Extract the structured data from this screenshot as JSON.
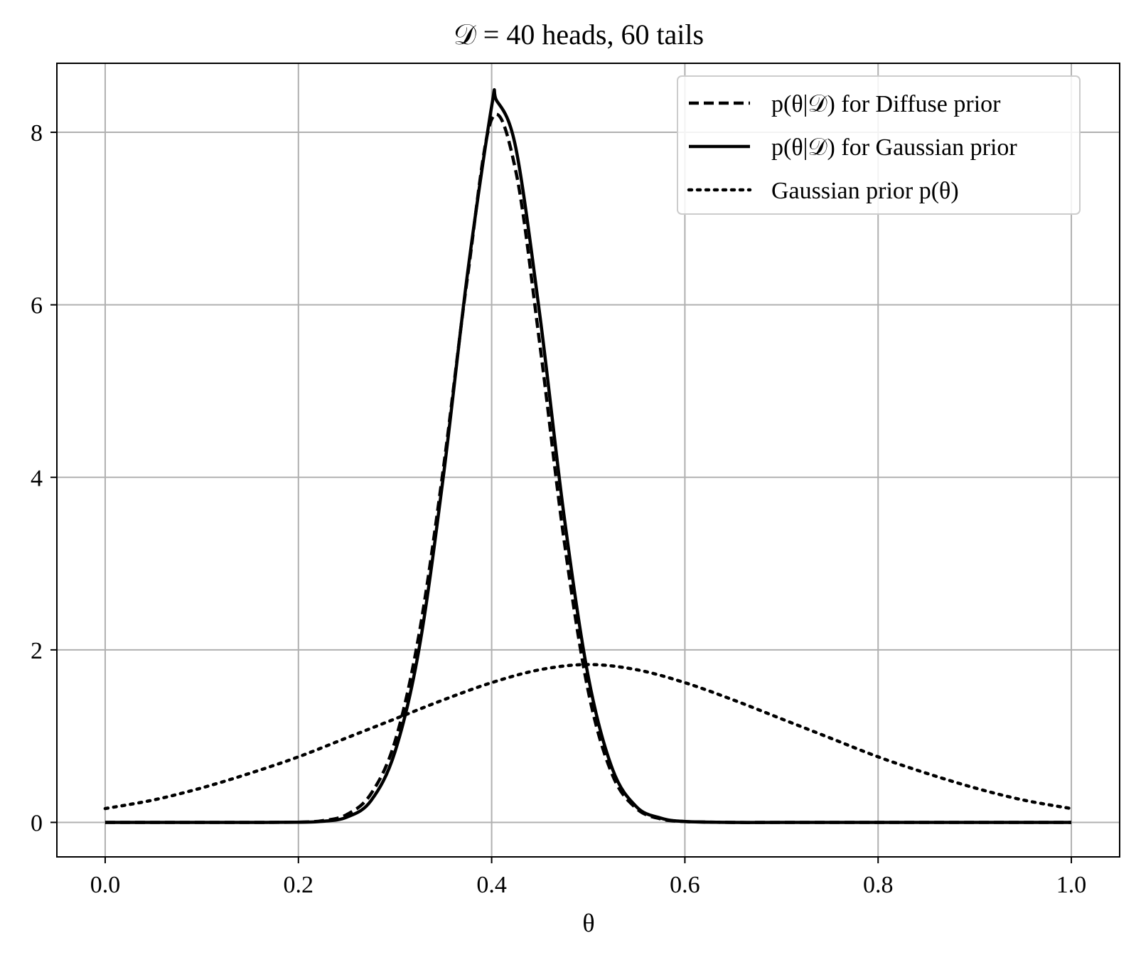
{
  "chart_data": {
    "type": "line",
    "title": "𝒟 = 40 heads, 60 tails",
    "xlabel": "θ",
    "ylabel": "",
    "xlim": [
      -0.05,
      1.05
    ],
    "ylim": [
      -0.4,
      8.8
    ],
    "grid": true,
    "legend_position": "top-right",
    "x_ticks": [
      0.0,
      0.2,
      0.4,
      0.6,
      0.8,
      1.0
    ],
    "x_tick_labels": [
      "0.0",
      "0.2",
      "0.4",
      "0.6",
      "0.8",
      "1.0"
    ],
    "y_ticks": [
      0,
      2,
      4,
      6,
      8
    ],
    "y_tick_labels": [
      "0",
      "2",
      "4",
      "6",
      "8"
    ],
    "series": [
      {
        "name": "p(θ|𝒟) for Diffuse prior",
        "style": "dashed",
        "color": "#000000",
        "x": [
          0.0,
          0.05,
          0.1,
          0.15,
          0.2,
          0.225,
          0.25,
          0.275,
          0.3,
          0.325,
          0.35,
          0.375,
          0.4,
          0.425,
          0.45,
          0.475,
          0.5,
          0.525,
          0.55,
          0.575,
          0.6,
          0.65,
          0.7,
          0.8,
          0.9,
          1.0
        ],
        "y": [
          0.0,
          0.0,
          0.0,
          0.0,
          0.003,
          0.02,
          0.09,
          0.33,
          0.94,
          2.19,
          4.1,
          6.32,
          8.15,
          7.55,
          5.53,
          3.27,
          1.52,
          0.55,
          0.16,
          0.04,
          0.01,
          0.0,
          0.0,
          0.0,
          0.0,
          0.0
        ]
      },
      {
        "name": "p(θ|𝒟) for Gaussian prior",
        "style": "solid",
        "color": "#000000",
        "x": [
          0.0,
          0.05,
          0.1,
          0.15,
          0.2,
          0.225,
          0.25,
          0.275,
          0.3,
          0.325,
          0.35,
          0.375,
          0.4,
          0.405,
          0.425,
          0.45,
          0.475,
          0.5,
          0.525,
          0.55,
          0.575,
          0.6,
          0.65,
          0.7,
          0.8,
          0.9,
          1.0
        ],
        "y": [
          0.0,
          0.0,
          0.0,
          0.0,
          0.002,
          0.012,
          0.06,
          0.25,
          0.82,
          2.02,
          4.01,
          6.36,
          8.3,
          8.37,
          7.82,
          5.87,
          3.55,
          1.69,
          0.62,
          0.18,
          0.05,
          0.01,
          0.0,
          0.0,
          0.0,
          0.0,
          0.0
        ]
      },
      {
        "name": "Gaussian prior p(θ)",
        "style": "dotted",
        "color": "#000000",
        "x": [
          0.0,
          0.05,
          0.1,
          0.15,
          0.2,
          0.25,
          0.3,
          0.35,
          0.4,
          0.45,
          0.5,
          0.55,
          0.6,
          0.65,
          0.7,
          0.75,
          0.8,
          0.85,
          0.9,
          0.95,
          1.0
        ],
        "y": [
          0.16,
          0.26,
          0.4,
          0.57,
          0.76,
          0.98,
          1.2,
          1.42,
          1.62,
          1.77,
          1.83,
          1.77,
          1.62,
          1.42,
          1.2,
          0.98,
          0.76,
          0.57,
          0.4,
          0.26,
          0.16
        ]
      }
    ]
  }
}
